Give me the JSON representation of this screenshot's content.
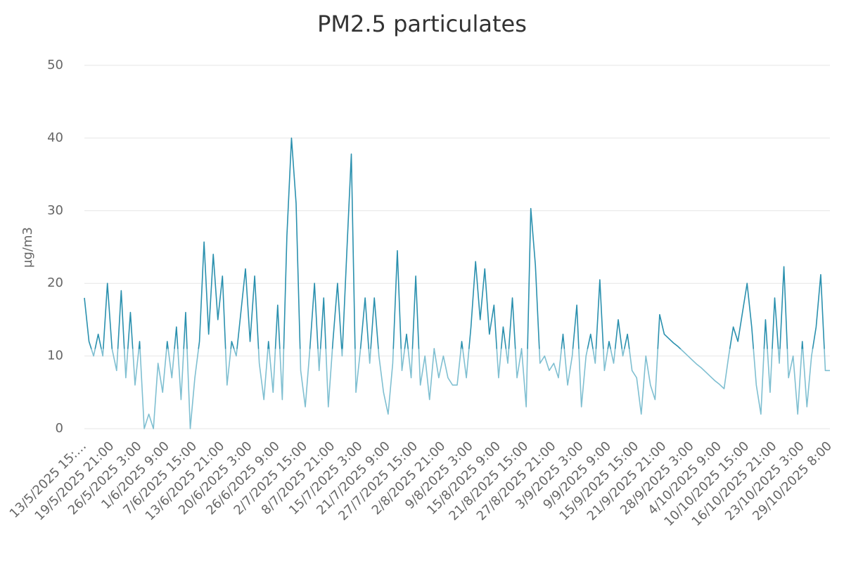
{
  "chart_data": {
    "type": "line",
    "title": "PM2.5 particulates",
    "y_label": "µg/m3",
    "categories": [
      "13/5/2025 15:…",
      null,
      null,
      null,
      null,
      null,
      "19/5/2025 21:00",
      null,
      null,
      null,
      null,
      null,
      "26/5/2025 3:00",
      null,
      null,
      null,
      null,
      null,
      "1/6/2025 9:00",
      null,
      null,
      null,
      null,
      null,
      "7/6/2025 15:00",
      null,
      null,
      null,
      null,
      null,
      "13/6/2025 21:00",
      null,
      null,
      null,
      null,
      null,
      "20/6/2025 3:00",
      null,
      null,
      null,
      null,
      null,
      "26/6/2025 9:00",
      null,
      null,
      null,
      null,
      null,
      "2/7/2025 15:00",
      null,
      null,
      null,
      null,
      null,
      "8/7/2025 21:00",
      null,
      null,
      null,
      null,
      null,
      "15/7/2025 3:00",
      null,
      null,
      null,
      null,
      null,
      "21/7/2025 9:00",
      null,
      null,
      null,
      null,
      null,
      "27/7/2025 15:00",
      null,
      null,
      null,
      null,
      null,
      "2/8/2025 21:00",
      null,
      null,
      null,
      null,
      null,
      "9/8/2025 3:00",
      null,
      null,
      null,
      null,
      null,
      "15/8/2025 9:00",
      null,
      null,
      null,
      null,
      null,
      "21/8/2025 15:00",
      null,
      null,
      null,
      null,
      null,
      "27/8/2025 21:00",
      null,
      null,
      null,
      null,
      null,
      "3/9/2025 3:00",
      null,
      null,
      null,
      null,
      null,
      "9/9/2025 9:00",
      null,
      null,
      null,
      null,
      null,
      "15/9/2025 15:00",
      null,
      null,
      null,
      null,
      null,
      "21/9/2025 21:00",
      null,
      null,
      null,
      null,
      null,
      "28/9/2025 3:00",
      null,
      null,
      null,
      null,
      null,
      "4/10/2025 9:00",
      null,
      null,
      null,
      null,
      null,
      "10/10/2025 15:00",
      null,
      null,
      null,
      null,
      null,
      "16/10/2025 21:00",
      null,
      null,
      null,
      null,
      null,
      "23/10/2025 3:00",
      null,
      null,
      null,
      null,
      null,
      "29/10/2025 8:00"
    ],
    "values": [
      18,
      12,
      10,
      13,
      10,
      20,
      11,
      8,
      19,
      7,
      16,
      6,
      12,
      0,
      2,
      0,
      9,
      5,
      12,
      7,
      14,
      4,
      16,
      0,
      7,
      12,
      25.7,
      13,
      24,
      15,
      21,
      6,
      12,
      10,
      16,
      22,
      12,
      21,
      9,
      4,
      12,
      5,
      17,
      4,
      26.5,
      40,
      31,
      8,
      3,
      11,
      20,
      8,
      18,
      3,
      12,
      20,
      10,
      24,
      37.8,
      5,
      11,
      18,
      9,
      18,
      10,
      5,
      2,
      9,
      24.5,
      8,
      13,
      7,
      21,
      6,
      10,
      4,
      11,
      7,
      10,
      7,
      6,
      6,
      12,
      7,
      14,
      23,
      15,
      22,
      13,
      17,
      7,
      14,
      9,
      18,
      7,
      11,
      3,
      30.3,
      22.5,
      9,
      10,
      8,
      9,
      7,
      13,
      6,
      10,
      17,
      3,
      10,
      13,
      9,
      20.5,
      8,
      12,
      9,
      15,
      10,
      13,
      8,
      7,
      2,
      10,
      6,
      4,
      15.7,
      13,
      12.4,
      11.8,
      11.3,
      10.7,
      10.1,
      9.5,
      8.9,
      8.4,
      7.8,
      7.2,
      6.6,
      6.1,
      5.5,
      10,
      14,
      12,
      16,
      20,
      14,
      6,
      2,
      15,
      5,
      18,
      9,
      22.3,
      7,
      10,
      2,
      12,
      3,
      10,
      14,
      21.2,
      8,
      8
    ],
    "zones": [
      {
        "value": 11,
        "color": "#7fbfd1"
      },
      {
        "color": "#2a90ae"
      }
    ],
    "ylim": [
      0,
      50
    ],
    "yticks": [
      0,
      10,
      20,
      30,
      40,
      50
    ],
    "grid": true
  }
}
